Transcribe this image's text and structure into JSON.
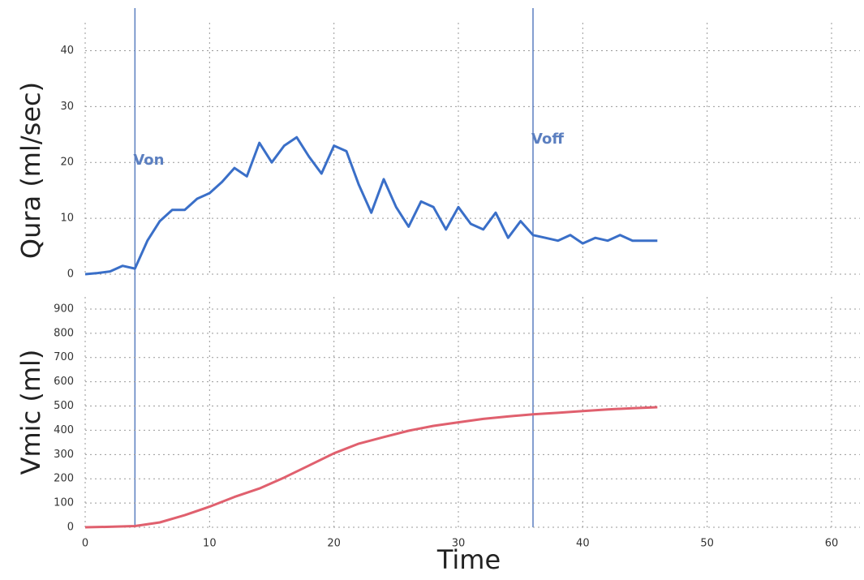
{
  "chart_data": [
    {
      "type": "line",
      "ylabel": "Qura (ml/sec)",
      "xlim": [
        0,
        60
      ],
      "ylim": [
        0,
        45
      ],
      "yticks": [
        0,
        10,
        20,
        30,
        40
      ],
      "grid": true,
      "markers": [
        {
          "label": "Von",
          "x": 4
        },
        {
          "label": "Voff",
          "x": 36
        }
      ],
      "marker_color": "#5b7fc0",
      "x": [
        0,
        1,
        2,
        3,
        4,
        5,
        6,
        7,
        8,
        9,
        10,
        11,
        12,
        13,
        14,
        15,
        16,
        17,
        18,
        19,
        20,
        21,
        22,
        23,
        24,
        25,
        26,
        27,
        28,
        29,
        30,
        31,
        32,
        33,
        34,
        35,
        36,
        37,
        38,
        39,
        40,
        41,
        42,
        43,
        44,
        45,
        46
      ],
      "series": [
        {
          "name": "Qura",
          "color": "#3a6fc8",
          "values": [
            0,
            0.2,
            0.5,
            1.5,
            1,
            6,
            9.5,
            11.5,
            11.5,
            13.5,
            14.5,
            16.5,
            19,
            17.5,
            23.5,
            20,
            23,
            24.5,
            21,
            18,
            23,
            22,
            16,
            11,
            17,
            12,
            8.5,
            13,
            12,
            8,
            12,
            9,
            8,
            11,
            6.5,
            9.5,
            7,
            6.5,
            6,
            7,
            5.5,
            6.5,
            6,
            7,
            6,
            6,
            6
          ]
        }
      ]
    },
    {
      "type": "line",
      "ylabel": "Vmic (ml)",
      "xlabel": "Time",
      "xlim": [
        0,
        60
      ],
      "xticks": [
        0,
        10,
        20,
        30,
        40,
        50,
        60
      ],
      "ylim": [
        0,
        950
      ],
      "yticks": [
        0,
        100,
        200,
        300,
        400,
        500,
        600,
        700,
        800,
        900
      ],
      "grid": true,
      "x": [
        0,
        2,
        4,
        6,
        8,
        10,
        12,
        14,
        16,
        18,
        20,
        22,
        24,
        26,
        28,
        30,
        32,
        34,
        36,
        38,
        40,
        42,
        44,
        46
      ],
      "series": [
        {
          "name": "Vmic",
          "color": "#e0606e",
          "values": [
            0,
            2,
            5,
            20,
            50,
            85,
            125,
            160,
            205,
            255,
            305,
            345,
            372,
            398,
            418,
            433,
            447,
            457,
            466,
            472,
            479,
            486,
            491,
            495
          ]
        }
      ]
    }
  ]
}
